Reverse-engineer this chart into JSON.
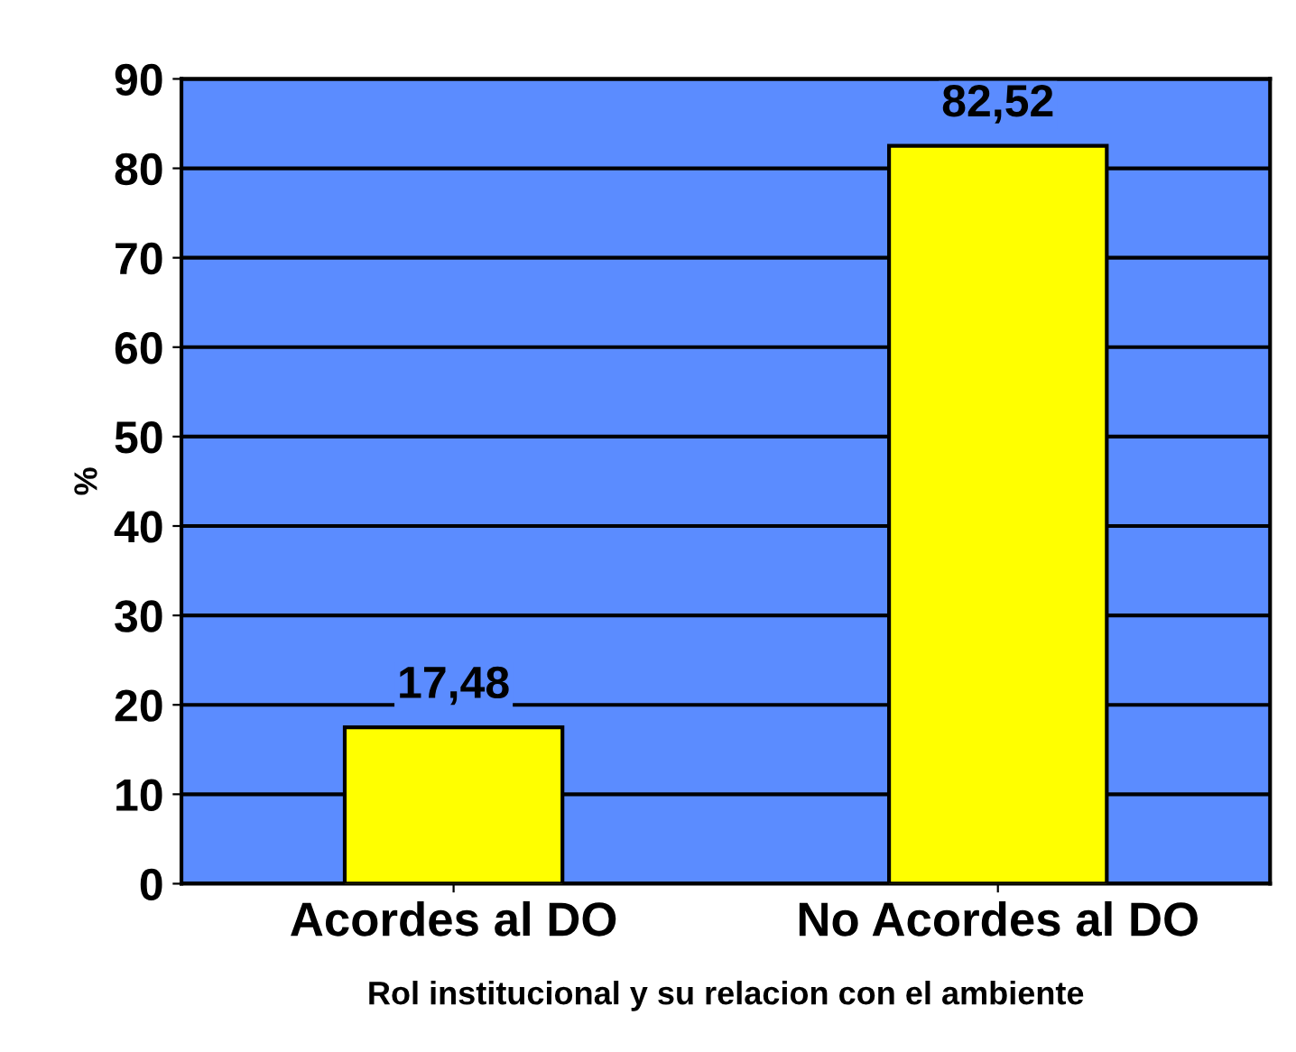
{
  "chart_data": {
    "type": "bar",
    "xlabel": "Rol institucional y su relacion con el ambiente",
    "ylabel": "%",
    "categories": [
      "Acordes al DO",
      "No Acordes al DO"
    ],
    "values": [
      17.48,
      82.52
    ],
    "value_labels": [
      "17,48",
      "82,52"
    ],
    "color": "#ffff00",
    "ylim": [
      0,
      90
    ],
    "yticks": [
      0,
      10,
      20,
      30,
      40,
      50,
      60,
      70,
      80,
      90
    ],
    "grid": "y",
    "legend": false
  }
}
